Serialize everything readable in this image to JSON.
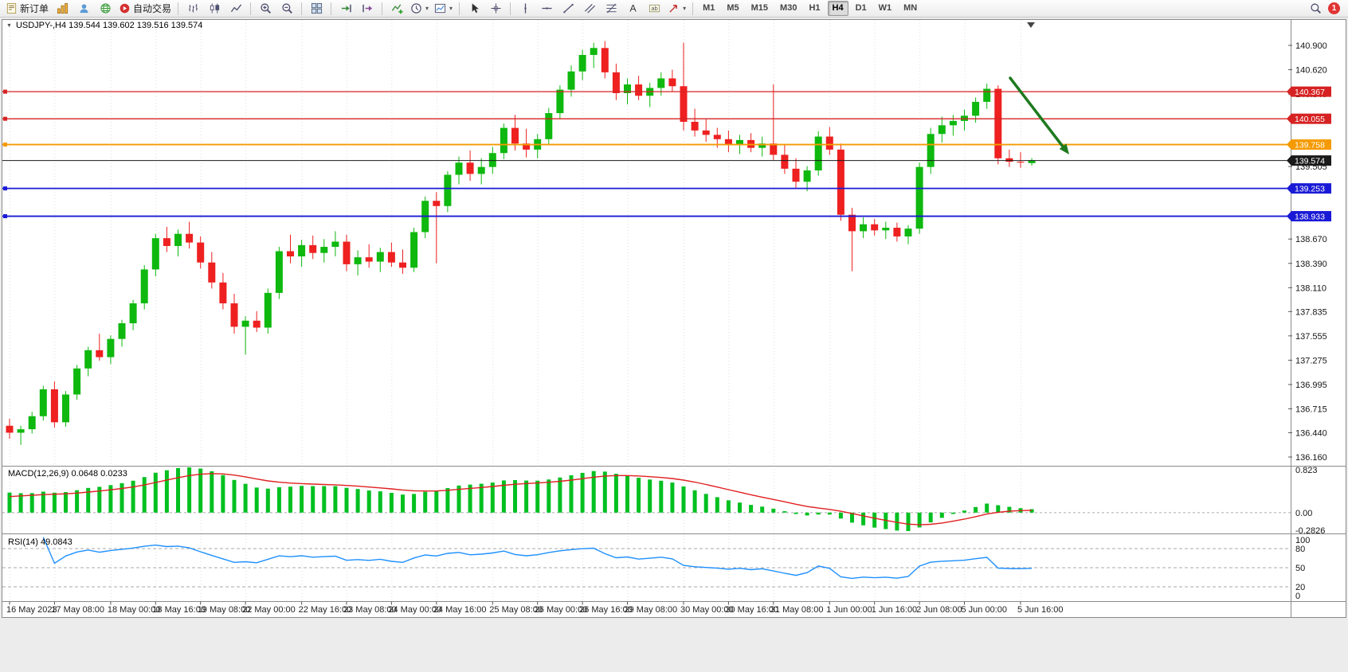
{
  "toolbar": {
    "notification_count": "1",
    "groups": [
      {
        "type": "buttons",
        "items": [
          {
            "name": "new-order",
            "icon": "new-order-icon",
            "label": "新订单"
          },
          {
            "name": "charts-window",
            "icon": "charts-icon"
          },
          {
            "name": "navigator",
            "icon": "navigator-icon"
          },
          {
            "name": "market-watch",
            "icon": "globe-icon"
          },
          {
            "name": "auto-trading",
            "icon": "autotrade-icon",
            "label": "自动交易"
          }
        ]
      },
      {
        "type": "sep"
      },
      {
        "type": "buttons",
        "items": [
          {
            "name": "bar-chart-mode",
            "icon": "bar-chart-icon"
          },
          {
            "name": "candlestick-mode",
            "icon": "candlestick-icon"
          },
          {
            "name": "line-chart-mode",
            "icon": "line-chart-icon"
          }
        ]
      },
      {
        "type": "sep"
      },
      {
        "type": "buttons",
        "items": [
          {
            "name": "zoom-in",
            "icon": "zoom-in-icon"
          },
          {
            "name": "zoom-out",
            "icon": "zoom-out-icon"
          }
        ]
      },
      {
        "type": "sep"
      },
      {
        "type": "buttons",
        "items": [
          {
            "name": "tile-windows",
            "icon": "tile-windows-icon"
          }
        ]
      },
      {
        "type": "sep"
      },
      {
        "type": "buttons",
        "items": [
          {
            "name": "auto-scroll",
            "icon": "auto-scroll-icon"
          },
          {
            "name": "chart-shift",
            "icon": "chart-shift-icon"
          }
        ]
      },
      {
        "type": "sep"
      },
      {
        "type": "buttons",
        "items": [
          {
            "name": "indicators",
            "icon": "indicators-icon"
          },
          {
            "name": "periods",
            "icon": "clock-icon",
            "dropdown": true
          },
          {
            "name": "templates",
            "icon": "templates-icon",
            "dropdown": true
          }
        ]
      },
      {
        "type": "sep"
      },
      {
        "type": "buttons",
        "items": [
          {
            "name": "cursor",
            "icon": "cursor-icon"
          },
          {
            "name": "crosshair",
            "icon": "crosshair-icon"
          }
        ]
      },
      {
        "type": "sep"
      },
      {
        "type": "buttons",
        "items": [
          {
            "name": "vertical-line",
            "icon": "vline-icon"
          },
          {
            "name": "horizontal-line",
            "icon": "hline-icon"
          },
          {
            "name": "trendline",
            "icon": "trendline-icon"
          },
          {
            "name": "equidistant-channel",
            "icon": "channel-icon"
          },
          {
            "name": "fibonacci",
            "icon": "fibo-icon"
          },
          {
            "name": "text",
            "icon": "text-icon"
          },
          {
            "name": "text-label",
            "icon": "label-icon"
          },
          {
            "name": "arrow-objects",
            "icon": "arrows-icon",
            "dropdown": true
          }
        ]
      },
      {
        "type": "sep"
      },
      {
        "type": "timeframes",
        "items": [
          {
            "label": "M1"
          },
          {
            "label": "M5"
          },
          {
            "label": "M15"
          },
          {
            "label": "M30"
          },
          {
            "label": "H1"
          },
          {
            "label": "H4",
            "active": true
          },
          {
            "label": "D1"
          },
          {
            "label": "W1"
          },
          {
            "label": "MN"
          }
        ]
      },
      {
        "type": "spacer"
      },
      {
        "type": "buttons",
        "items": [
          {
            "name": "search",
            "icon": "search-icon"
          }
        ]
      },
      {
        "type": "badge"
      }
    ]
  },
  "chart_data": {
    "type": "candlestick",
    "symbol": "USDJPY-",
    "timeframe": "H4",
    "header_text": "USDJPY-,H4 139.544 139.602 139.516 139.574",
    "last_ohlc": {
      "open": "139.544",
      "high": "139.602",
      "low": "139.516",
      "close": "139.574"
    },
    "ylim": [
      136.105,
      141.065
    ],
    "price_axis_ticks": [
      "140.900",
      "140.620",
      "140.340",
      "139.505",
      "138.670",
      "138.390",
      "138.110",
      "137.835",
      "137.555",
      "137.275",
      "136.995",
      "136.715",
      "136.440",
      "136.160"
    ],
    "hlines": [
      {
        "value": 140.367,
        "label": "140.367",
        "color": "#d62222",
        "type": "resistance"
      },
      {
        "value": 140.055,
        "label": "140.055",
        "color": "#d62222",
        "type": "resistance"
      },
      {
        "value": 139.758,
        "label": "139.758",
        "color": "#f59a00",
        "type": "pivot"
      },
      {
        "value": 139.574,
        "label": "139.574",
        "color": "#1a1a1a",
        "type": "current-price"
      },
      {
        "value": 139.253,
        "label": "139.253",
        "color": "#1a1ad6",
        "type": "support"
      },
      {
        "value": 138.933,
        "label": "138.933",
        "color": "#1a1ad6",
        "type": "support"
      }
    ],
    "time_labels": [
      "16 May 2023",
      "17 May 08:00",
      "18 May 00:00",
      "18 May 16:00",
      "19 May 08:00",
      "22 May 00:00",
      "22 May 16:00",
      "23 May 08:00",
      "24 May 00:00",
      "24 May 16:00",
      "25 May 08:00",
      "26 May 00:00",
      "26 May 16:00",
      "29 May 08:00",
      "30 May 00:00",
      "30 May 16:00",
      "31 May 08:00",
      "1 Jun 00:00",
      "1 Jun 16:00",
      "2 Jun 08:00",
      "5 Jun 00:00",
      "5 Jun 16:00"
    ],
    "annotations": [
      {
        "type": "arrow",
        "direction": "down-right",
        "color": "#1e7a1e"
      }
    ],
    "colors": {
      "up": "#0eb80e",
      "down": "#ee2020",
      "background": "#ffffff",
      "border": "#8a8a8a",
      "grid": "#dedede",
      "axis_text": "#151515"
    },
    "indicators": {
      "macd": {
        "label": "MACD(12,26,9) 0.0648 0.0233",
        "params": [
          12,
          26,
          9
        ],
        "value": "0.0648",
        "signal_value": "0.0233",
        "axis_labels": [
          "0.823",
          "0.00",
          "-0.2826"
        ],
        "hist_color": "#00c020",
        "signal_color": "#e02020"
      },
      "rsi": {
        "label": "RSI(14) 49.0843",
        "period": 14,
        "value": "49.0843",
        "axis_labels": [
          "100",
          "80",
          "50",
          "20",
          "0"
        ],
        "levels": [
          80,
          50,
          20
        ],
        "line_color": "#1e90ff"
      }
    },
    "candles": [
      [
        136.52,
        136.6,
        136.37,
        136.44
      ],
      [
        136.44,
        136.52,
        136.3,
        136.48
      ],
      [
        136.48,
        136.68,
        136.43,
        136.63
      ],
      [
        136.63,
        136.98,
        136.58,
        136.94
      ],
      [
        136.94,
        137.03,
        136.5,
        136.56
      ],
      [
        136.56,
        136.92,
        136.51,
        136.88
      ],
      [
        136.88,
        137.22,
        136.82,
        137.18
      ],
      [
        137.18,
        137.43,
        137.09,
        137.39
      ],
      [
        137.39,
        137.58,
        137.27,
        137.31
      ],
      [
        137.31,
        137.56,
        137.23,
        137.52
      ],
      [
        137.52,
        137.74,
        137.43,
        137.7
      ],
      [
        137.7,
        137.97,
        137.62,
        137.93
      ],
      [
        137.93,
        138.37,
        137.86,
        138.32
      ],
      [
        138.32,
        138.73,
        138.24,
        138.68
      ],
      [
        138.68,
        138.81,
        138.52,
        138.59
      ],
      [
        138.59,
        138.78,
        138.47,
        138.73
      ],
      [
        138.73,
        138.87,
        138.56,
        138.63
      ],
      [
        138.63,
        138.7,
        138.33,
        138.4
      ],
      [
        138.4,
        138.52,
        138.1,
        138.17
      ],
      [
        138.17,
        138.28,
        137.86,
        137.93
      ],
      [
        137.93,
        138.04,
        137.58,
        137.66
      ],
      [
        137.66,
        137.78,
        137.34,
        137.73
      ],
      [
        137.73,
        137.84,
        137.6,
        137.65
      ],
      [
        137.65,
        138.1,
        137.58,
        138.05
      ],
      [
        138.05,
        138.58,
        137.98,
        138.53
      ],
      [
        138.53,
        138.72,
        138.39,
        138.47
      ],
      [
        138.47,
        138.66,
        138.35,
        138.6
      ],
      [
        138.6,
        138.71,
        138.44,
        138.51
      ],
      [
        138.51,
        138.67,
        138.4,
        138.58
      ],
      [
        138.58,
        138.76,
        138.47,
        138.64
      ],
      [
        138.64,
        138.72,
        138.3,
        138.38
      ],
      [
        138.38,
        138.54,
        138.25,
        138.46
      ],
      [
        138.46,
        138.61,
        138.34,
        138.41
      ],
      [
        138.41,
        138.57,
        138.29,
        138.52
      ],
      [
        138.52,
        138.63,
        138.35,
        138.4
      ],
      [
        138.4,
        138.55,
        138.27,
        138.34
      ],
      [
        138.34,
        138.8,
        138.29,
        138.75
      ],
      [
        138.75,
        139.16,
        138.68,
        139.11
      ],
      [
        139.11,
        139.21,
        138.39,
        139.05
      ],
      [
        139.05,
        139.45,
        138.98,
        139.41
      ],
      [
        139.41,
        139.62,
        139.3,
        139.55
      ],
      [
        139.55,
        139.69,
        139.34,
        139.42
      ],
      [
        139.42,
        139.6,
        139.3,
        139.5
      ],
      [
        139.5,
        139.73,
        139.42,
        139.66
      ],
      [
        139.66,
        140.0,
        139.59,
        139.95
      ],
      [
        139.95,
        140.1,
        139.69,
        139.77
      ],
      [
        139.77,
        139.94,
        139.61,
        139.7
      ],
      [
        139.7,
        139.88,
        139.6,
        139.82
      ],
      [
        139.82,
        140.18,
        139.76,
        140.12
      ],
      [
        140.12,
        140.44,
        140.05,
        140.39
      ],
      [
        140.39,
        140.67,
        140.31,
        140.6
      ],
      [
        140.6,
        140.85,
        140.5,
        140.79
      ],
      [
        140.79,
        140.93,
        140.64,
        140.87
      ],
      [
        140.87,
        140.95,
        140.52,
        140.59
      ],
      [
        140.59,
        140.69,
        140.27,
        140.35
      ],
      [
        140.35,
        140.52,
        140.22,
        140.45
      ],
      [
        140.45,
        140.55,
        140.27,
        140.32
      ],
      [
        140.32,
        140.47,
        140.19,
        140.41
      ],
      [
        140.41,
        140.59,
        140.32,
        140.52
      ],
      [
        140.52,
        140.62,
        140.37,
        140.43
      ],
      [
        140.43,
        140.93,
        139.92,
        140.02
      ],
      [
        140.02,
        140.17,
        139.85,
        139.92
      ],
      [
        139.92,
        140.05,
        139.79,
        139.87
      ],
      [
        139.87,
        139.95,
        139.72,
        139.82
      ],
      [
        139.82,
        139.92,
        139.67,
        139.75
      ],
      [
        139.75,
        139.87,
        139.65,
        139.81
      ],
      [
        139.81,
        139.89,
        139.67,
        139.72
      ],
      [
        139.72,
        139.85,
        139.62,
        139.77
      ],
      [
        139.77,
        140.45,
        139.58,
        139.64
      ],
      [
        139.64,
        139.76,
        139.42,
        139.48
      ],
      [
        139.48,
        139.6,
        139.26,
        139.33
      ],
      [
        139.33,
        139.51,
        139.22,
        139.46
      ],
      [
        139.46,
        139.91,
        139.4,
        139.85
      ],
      [
        139.85,
        139.96,
        139.64,
        139.7
      ],
      [
        139.7,
        139.77,
        138.88,
        138.95
      ],
      [
        138.95,
        139.03,
        138.3,
        138.76
      ],
      [
        138.76,
        138.92,
        138.68,
        138.84
      ],
      [
        138.84,
        138.9,
        138.71,
        138.77
      ],
      [
        138.77,
        138.87,
        138.67,
        138.8
      ],
      [
        138.8,
        138.86,
        138.64,
        138.7
      ],
      [
        138.7,
        138.83,
        138.61,
        138.79
      ],
      [
        138.79,
        139.55,
        138.73,
        139.5
      ],
      [
        139.5,
        139.95,
        139.42,
        139.88
      ],
      [
        139.88,
        140.08,
        139.78,
        139.98
      ],
      [
        139.98,
        140.1,
        139.86,
        140.03
      ],
      [
        140.03,
        140.16,
        139.92,
        140.09
      ],
      [
        140.09,
        140.3,
        140.01,
        140.25
      ],
      [
        140.25,
        140.46,
        140.17,
        140.4
      ],
      [
        140.4,
        140.44,
        139.53,
        139.6
      ],
      [
        139.6,
        139.7,
        139.5,
        139.56
      ],
      [
        139.56,
        139.67,
        139.49,
        139.55
      ],
      [
        139.544,
        139.602,
        139.516,
        139.574
      ]
    ]
  }
}
